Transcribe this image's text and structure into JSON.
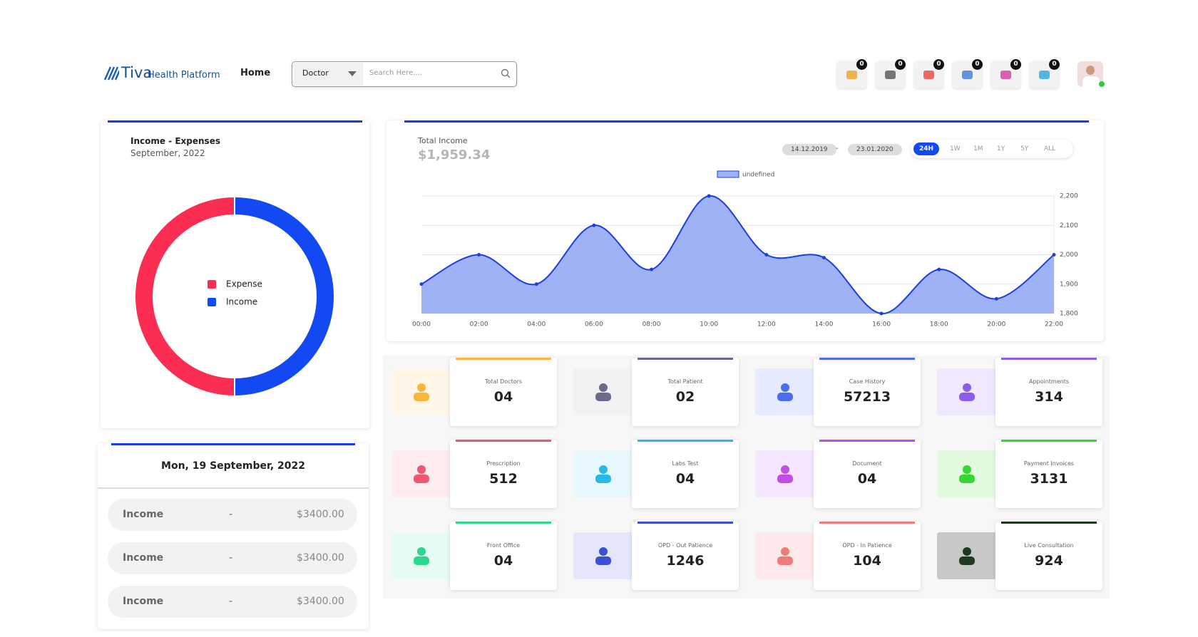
{
  "header": {
    "brand": "Tiva",
    "brand_sub": "Health Platform",
    "nav": "Home",
    "dropdown": "Doctor",
    "search_placeholder": "Search Here....",
    "badges": [
      "0",
      "0",
      "0",
      "0",
      "0",
      "0"
    ]
  },
  "chart_data": [
    {
      "type": "pie",
      "donut": true,
      "title": "Income - Expenses",
      "subtitle": "September, 2022",
      "categories": [
        "Expense",
        "Income"
      ],
      "values": [
        50,
        50
      ],
      "colors": [
        "#fb2d52",
        "#1249f2"
      ]
    },
    {
      "type": "line",
      "title": "Total Income",
      "subtitle": "$1,959.34",
      "date_from": "14.12.2019",
      "date_sep": "-",
      "date_to": "23.01.2020",
      "ranges": [
        "24H",
        "1W",
        "1M",
        "1Y",
        "5Y",
        "ALL"
      ],
      "active_range": 0,
      "x": [
        "00:00",
        "02:00",
        "04:00",
        "06:00",
        "08:00",
        "10:00",
        "12:00",
        "14:00",
        "16:00",
        "18:00",
        "20:00",
        "22:00"
      ],
      "series": [
        {
          "name": "undefined",
          "color": "#1a3fe0",
          "fill": "#9fb2f5",
          "values": [
            1900,
            2000,
            1900,
            2100,
            1950,
            2200,
            2000,
            1990,
            1800,
            1950,
            1850,
            2000
          ]
        }
      ],
      "ylim": [
        1800,
        2200
      ],
      "yticks": [
        {
          "value": 1800,
          "label": "1,800"
        },
        {
          "value": 1900,
          "label": "1,900"
        },
        {
          "value": 2000,
          "label": "2,000"
        },
        {
          "value": 2100,
          "label": "2,100"
        },
        {
          "value": 2200,
          "label": "2,200"
        }
      ],
      "grid": true,
      "legend": "top"
    }
  ],
  "date_card": {
    "title": "Mon, 19 September, 2022",
    "rows": [
      {
        "label": "Income",
        "sep": "-",
        "amount": "$3400.00"
      },
      {
        "label": "Income",
        "sep": "-",
        "amount": "$3400.00"
      },
      {
        "label": "Income",
        "sep": "-",
        "amount": "$3400.00"
      }
    ]
  },
  "stats": [
    {
      "label": "Total Doctors",
      "value": "04",
      "color": "#f6b73c",
      "icon_bg": "#fff6e8"
    },
    {
      "label": "Total Patient",
      "value": "02",
      "color": "#6a6b8c",
      "icon_bg": "#f2f2f5"
    },
    {
      "label": "Case History",
      "value": "57213",
      "color": "#4a6ef0",
      "icon_bg": "#e6ebff"
    },
    {
      "label": "Appointments",
      "value": "314",
      "color": "#8a5cf0",
      "icon_bg": "#efe8ff"
    },
    {
      "label": "Prescription",
      "value": "512",
      "color": "#f2566f",
      "icon_bg": "#ffecef"
    },
    {
      "label": "Labs Test",
      "value": "04",
      "color": "#2ab8e6",
      "icon_bg": "#e6f7fd"
    },
    {
      "label": "Document",
      "value": "04",
      "color": "#c24de6",
      "icon_bg": "#f7e6ff"
    },
    {
      "label": "Payment Invoices",
      "value": "3131",
      "color": "#33d633",
      "icon_bg": "#e2fbdf"
    },
    {
      "label": "Front Office",
      "value": "04",
      "color": "#2bd68e",
      "icon_bg": "#e6fbf1"
    },
    {
      "label": "OPD - Out Patience",
      "value": "1246",
      "color": "#3b4fd8",
      "icon_bg": "#e3e6fb"
    },
    {
      "label": "OPD - In Patience",
      "value": "104",
      "color": "#f07a7a",
      "icon_bg": "#fde9e9"
    },
    {
      "label": "Live Consultation",
      "value": "924",
      "color": "#1f3a20",
      "icon_bg": "#c8c8c8"
    }
  ]
}
